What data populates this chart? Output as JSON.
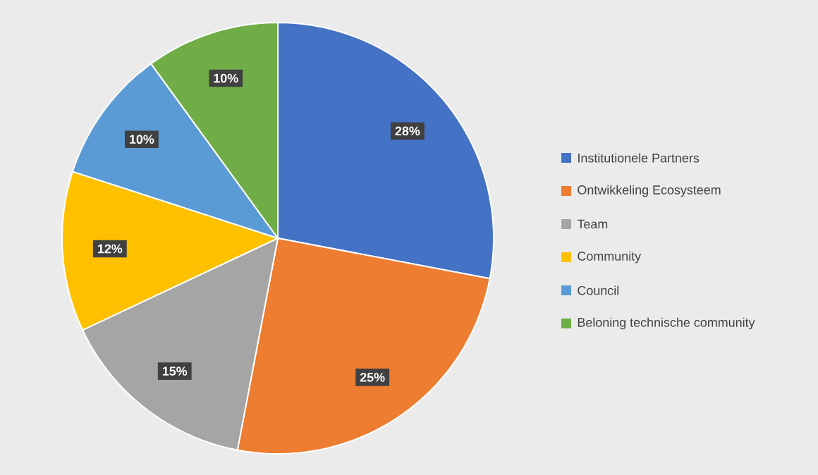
{
  "chart_data": {
    "type": "pie",
    "categories": [
      "Institutionele Partners",
      "Ontwikkeling Ecosysteem",
      "Team",
      "Community",
      "Council",
      "Beloning technische community"
    ],
    "values": [
      28,
      25,
      15,
      12,
      10,
      10
    ],
    "value_labels": [
      "28%",
      "25%",
      "15%",
      "12%",
      "10%",
      "10%"
    ],
    "colors": [
      "#4472c4",
      "#ed7d31",
      "#a5a5a5",
      "#ffc000",
      "#5b9bd5",
      "#70ad47"
    ],
    "legend": "right"
  }
}
